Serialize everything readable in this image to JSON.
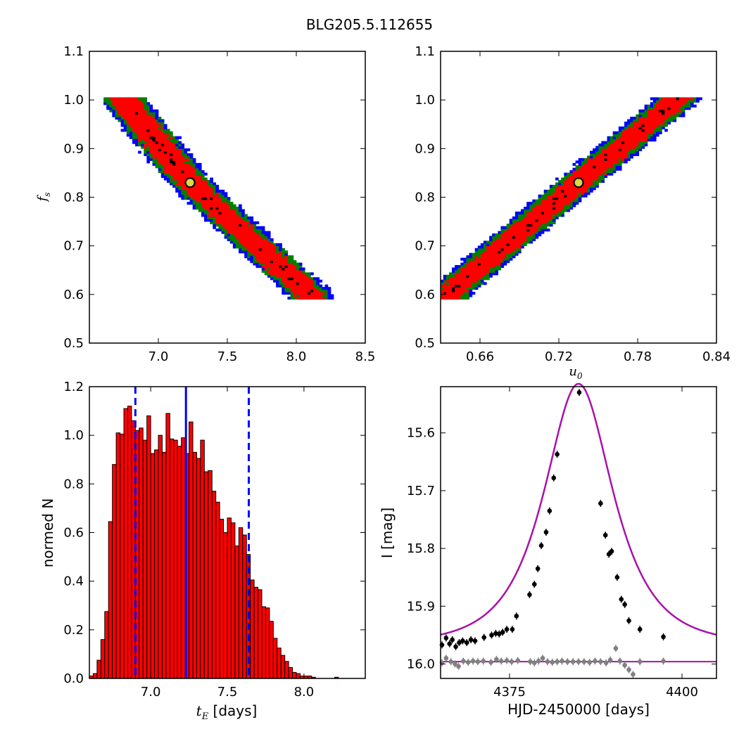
{
  "figure": {
    "title": "BLG205.5.112655"
  },
  "colors": {
    "sigma3": "#0000ff",
    "sigma2": "#008000",
    "sigma1": "#ff0000",
    "bins": "#000000",
    "best": "#d8d84a",
    "fit": "#aa11aa",
    "resid": "#808080"
  },
  "chart_data": [
    {
      "id": "fs_vs_tE",
      "type": "heatmap",
      "title": "",
      "xlabel": "",
      "ylabel": "f",
      "ylabel_sub": "s",
      "xlim": [
        6.5,
        8.5
      ],
      "ylim": [
        0.5,
        1.1
      ],
      "xticks": [
        "7.0",
        "7.5",
        "8.0",
        "8.5"
      ],
      "yticks": [
        "0.5",
        "0.6",
        "0.7",
        "0.8",
        "0.9",
        "1.0",
        "1.1"
      ],
      "relation": "fs decreases linearly with tE",
      "ridge": [
        [
          6.75,
          1.0
        ],
        [
          7.23,
          0.83
        ],
        [
          8.1,
          0.6
        ]
      ],
      "best_fit": {
        "x": 7.23,
        "y": 0.83
      },
      "contour_levels": [
        "1-sigma",
        "2-sigma",
        "3-sigma",
        "densest bins"
      ]
    },
    {
      "id": "fs_vs_u0",
      "type": "heatmap",
      "title": "",
      "xlabel": "u",
      "xlabel_sub": "0",
      "ylabel": "",
      "xlim": [
        0.63,
        0.84
      ],
      "ylim": [
        0.5,
        1.1
      ],
      "xticks": [
        "0.66",
        "0.72",
        "0.78",
        "0.84"
      ],
      "yticks": [
        "0.5",
        "0.6",
        "0.7",
        "0.8",
        "0.9",
        "1.0",
        "1.1"
      ],
      "relation": "fs increases linearly with u0",
      "ridge": [
        [
          0.635,
          0.6
        ],
        [
          0.735,
          0.83
        ],
        [
          0.81,
          1.0
        ]
      ],
      "best_fit": {
        "x": 0.735,
        "y": 0.83
      },
      "contour_levels": [
        "1-sigma",
        "2-sigma",
        "3-sigma",
        "densest bins"
      ]
    },
    {
      "id": "tE_histogram",
      "type": "bar",
      "title": "",
      "xlabel": "t",
      "xlabel_sub": "E",
      "xlabel_unit": " [days]",
      "ylabel": "normed N",
      "xlim": [
        6.6,
        8.4
      ],
      "ylim": [
        0.0,
        1.2
      ],
      "xticks": [
        "7.0",
        "7.5",
        "8.0"
      ],
      "yticks": [
        "0.0",
        "0.2",
        "0.4",
        "0.6",
        "0.8",
        "1.0",
        "1.2"
      ],
      "bin_start": 6.6,
      "bin_width": 0.025,
      "values": [
        0.01,
        0.02,
        0.075,
        0.16,
        0.275,
        0.645,
        0.88,
        1.01,
        1.005,
        1.11,
        1.12,
        1.06,
        1.02,
        1.03,
        0.98,
        1.08,
        0.925,
        0.94,
        1.0,
        0.93,
        1.09,
        0.985,
        0.98,
        0.955,
        0.99,
        0.925,
        1.055,
        0.93,
        0.905,
        0.98,
        0.85,
        0.855,
        0.77,
        0.725,
        0.655,
        0.6,
        0.66,
        0.64,
        0.545,
        0.62,
        0.59,
        0.51,
        0.405,
        0.375,
        0.365,
        0.295,
        0.29,
        0.235,
        0.165,
        0.125,
        0.095,
        0.07,
        0.045,
        0.025,
        0.02,
        0.01,
        0.01,
        0.01,
        0.005,
        0.0,
        0.0,
        0.0,
        0.0,
        0.0,
        0.005,
        0.0,
        0.0,
        0.0,
        0.0,
        0.0,
        0.0,
        0.0
      ],
      "median": 7.23,
      "lower": 6.9,
      "upper": 7.64
    },
    {
      "id": "light_curve",
      "type": "scatter",
      "title": "",
      "xlabel": "HJD-2450000 [days]",
      "ylabel": "I [mag]",
      "xlim": [
        4365,
        4405
      ],
      "ylim": [
        16.025,
        15.52
      ],
      "y_inverted": true,
      "xticks": [
        "4375",
        "4400"
      ],
      "yticks": [
        "15.6",
        "15.7",
        "15.8",
        "15.9",
        "16.0"
      ],
      "model": {
        "t0": 4385.0,
        "u0": 0.735,
        "tE": 7.23,
        "fs": 0.83,
        "baseline": 15.967
      },
      "data": [
        [
          4365.2,
          15.967
        ],
        [
          4365.8,
          15.955
        ],
        [
          4366.3,
          15.965
        ],
        [
          4366.7,
          15.958
        ],
        [
          4367.2,
          15.97
        ],
        [
          4367.7,
          15.963
        ],
        [
          4368.2,
          15.96
        ],
        [
          4368.8,
          15.963
        ],
        [
          4369.4,
          15.958
        ],
        [
          4370.0,
          15.96
        ],
        [
          4371.3,
          15.954
        ],
        [
          4372.4,
          15.95
        ],
        [
          4373.0,
          15.947
        ],
        [
          4373.5,
          15.948
        ],
        [
          4374.0,
          15.945
        ],
        [
          4374.6,
          15.94
        ],
        [
          4375.4,
          15.94
        ],
        [
          4376.0,
          15.917
        ],
        [
          4377.9,
          15.88
        ],
        [
          4378.6,
          15.862
        ],
        [
          4379.1,
          15.835
        ],
        [
          4379.6,
          15.795
        ],
        [
          4380.3,
          15.772
        ],
        [
          4380.8,
          15.735
        ],
        [
          4381.4,
          15.678
        ],
        [
          4381.9,
          15.637
        ],
        [
          4385.1,
          15.53
        ],
        [
          4388.2,
          15.722
        ],
        [
          4388.9,
          15.777
        ],
        [
          4389.4,
          15.81
        ],
        [
          4389.8,
          15.805
        ],
        [
          4390.6,
          15.85
        ],
        [
          4391.2,
          15.888
        ],
        [
          4391.7,
          15.897
        ],
        [
          4392.3,
          15.925
        ],
        [
          4393.9,
          15.94
        ],
        [
          4397.3,
          15.953
        ]
      ],
      "residuals": [
        [
          4365.2,
          15.998
        ],
        [
          4365.8,
          15.99
        ],
        [
          4366.5,
          15.996
        ],
        [
          4367.1,
          16.0
        ],
        [
          4367.6,
          16.004
        ],
        [
          4368.3,
          15.995
        ],
        [
          4369.0,
          15.997
        ],
        [
          4369.7,
          15.995
        ],
        [
          4370.4,
          15.996
        ],
        [
          4371.2,
          15.995
        ],
        [
          4372.3,
          15.997
        ],
        [
          4373.1,
          15.992
        ],
        [
          4373.8,
          15.995
        ],
        [
          4374.6,
          15.994
        ],
        [
          4375.3,
          15.996
        ],
        [
          4376.2,
          15.994
        ],
        [
          4378.0,
          15.996
        ],
        [
          4378.6,
          15.998
        ],
        [
          4379.2,
          15.995
        ],
        [
          4379.8,
          15.99
        ],
        [
          4380.5,
          15.996
        ],
        [
          4381.2,
          15.997
        ],
        [
          4381.9,
          15.996
        ],
        [
          4382.6,
          15.995
        ],
        [
          4383.4,
          15.996
        ],
        [
          4384.2,
          15.996
        ],
        [
          4385.0,
          15.996
        ],
        [
          4385.8,
          15.996
        ],
        [
          4386.6,
          15.997
        ],
        [
          4387.4,
          15.995
        ],
        [
          4388.2,
          15.996
        ],
        [
          4389.0,
          15.998
        ],
        [
          4389.6,
          15.993
        ],
        [
          4390.4,
          15.973
        ],
        [
          4391.0,
          15.995
        ],
        [
          4391.7,
          16.002
        ],
        [
          4392.3,
          16.01
        ],
        [
          4392.9,
          16.018
        ],
        [
          4393.9,
          15.996
        ],
        [
          4397.3,
          15.995
        ]
      ]
    }
  ]
}
